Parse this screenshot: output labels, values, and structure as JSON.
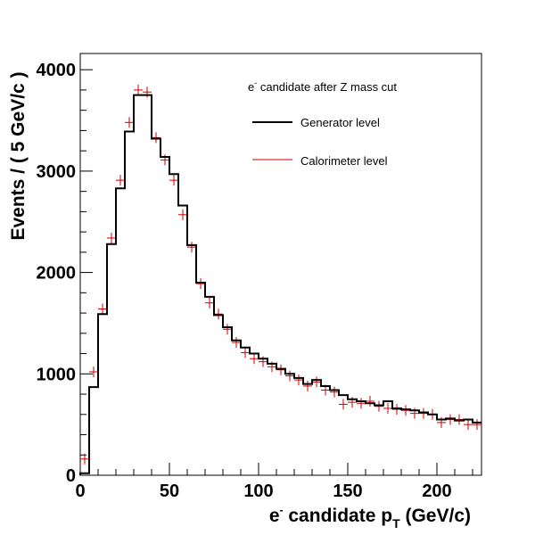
{
  "chart_data": {
    "type": "histogram",
    "title": "",
    "xlim": [
      0,
      225
    ],
    "ylim": [
      0,
      4160
    ],
    "bin_width": 5,
    "x_ticks": [
      0,
      50,
      100,
      150,
      200
    ],
    "y_ticks": [
      0,
      1000,
      2000,
      3000,
      4000
    ],
    "x_tick_labels": [
      "0",
      "50",
      "100",
      "150",
      "200"
    ],
    "y_tick_labels": [
      "0",
      "1000",
      "2000",
      "3000",
      "4000"
    ],
    "xlabel": {
      "pre": "e",
      "sup": "-",
      "mid": " candidate p",
      "sub": "T",
      "post": " (GeV/c)"
    },
    "ylabel": "Events / ( 5 GeV/c )",
    "legend": {
      "header_pre": "e",
      "header_sup": "-",
      "header_post": " candidate after Z mass cut",
      "entries": [
        {
          "name": "Generator level",
          "color": "#000000"
        },
        {
          "name": "Calorimeter level",
          "color": "#cc0000"
        }
      ]
    },
    "series": [
      {
        "name": "Generator level",
        "style": "step",
        "color": "#000000",
        "x": [
          0,
          5,
          10,
          15,
          20,
          25,
          30,
          35,
          40,
          45,
          50,
          55,
          60,
          65,
          70,
          75,
          80,
          85,
          90,
          95,
          100,
          105,
          110,
          115,
          120,
          125,
          130,
          135,
          140,
          145,
          150,
          155,
          160,
          165,
          170,
          175,
          180,
          185,
          190,
          195,
          200,
          205,
          210,
          215,
          220
        ],
        "values": [
          20,
          870,
          1590,
          2280,
          2830,
          3390,
          3750,
          3750,
          3320,
          3140,
          2970,
          2660,
          2270,
          1900,
          1760,
          1580,
          1460,
          1330,
          1260,
          1200,
          1150,
          1100,
          1050,
          1000,
          960,
          900,
          940,
          880,
          840,
          790,
          750,
          730,
          710,
          690,
          730,
          660,
          650,
          640,
          620,
          600,
          550,
          560,
          540,
          550,
          520
        ]
      },
      {
        "name": "Calorimeter level",
        "style": "points",
        "color": "#cc0000",
        "x": [
          2.5,
          7.5,
          12.5,
          17.5,
          22.5,
          27.5,
          32.5,
          37.5,
          42.5,
          47.5,
          52.5,
          57.5,
          62.5,
          67.5,
          72.5,
          77.5,
          82.5,
          87.5,
          92.5,
          97.5,
          102.5,
          107.5,
          112.5,
          117.5,
          122.5,
          127.5,
          132.5,
          137.5,
          142.5,
          147.5,
          152.5,
          157.5,
          162.5,
          167.5,
          172.5,
          177.5,
          182.5,
          187.5,
          192.5,
          197.5,
          202.5,
          207.5,
          212.5,
          217.5,
          222.5
        ],
        "values": [
          160,
          1020,
          1640,
          2340,
          2910,
          3480,
          3800,
          3780,
          3330,
          3110,
          2910,
          2570,
          2250,
          1890,
          1700,
          1590,
          1440,
          1310,
          1210,
          1150,
          1120,
          1070,
          1040,
          980,
          940,
          880,
          920,
          840,
          820,
          700,
          720,
          710,
          730,
          680,
          660,
          650,
          640,
          610,
          610,
          600,
          520,
          550,
          550,
          500,
          500
        ]
      }
    ]
  }
}
